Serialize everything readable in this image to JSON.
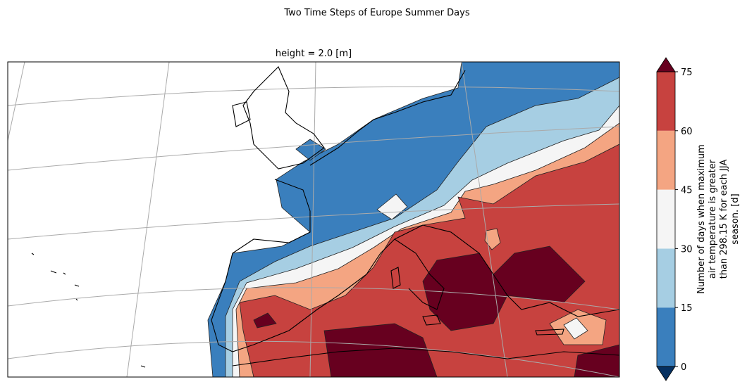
{
  "chart_data": {
    "type": "contourf",
    "title": "Two Time Steps of Europe Summer Days",
    "subtitle": "height = 2.0 [m]",
    "colorbar": {
      "label_lines": [
        "Number of days when maximum",
        "air temperature is greater",
        "than 298.15 K for each JJA",
        "season. [d]"
      ],
      "lim": [
        0,
        75
      ],
      "ticks": [
        0,
        15,
        30,
        45,
        60,
        75
      ],
      "colors": [
        "#3a7fbd",
        "#a6cee3",
        "#f5f5f5",
        "#f4a582",
        "#c7423f"
      ],
      "under_color": "#053061",
      "over_color": "#67001f"
    }
  }
}
